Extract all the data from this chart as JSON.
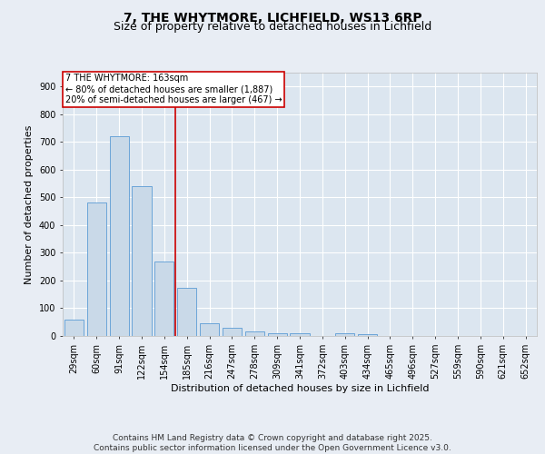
{
  "title": "7, THE WHYTMORE, LICHFIELD, WS13 6RP",
  "subtitle": "Size of property relative to detached houses in Lichfield",
  "xlabel": "Distribution of detached houses by size in Lichfield",
  "ylabel": "Number of detached properties",
  "categories": [
    "29sqm",
    "60sqm",
    "91sqm",
    "122sqm",
    "154sqm",
    "185sqm",
    "216sqm",
    "247sqm",
    "278sqm",
    "309sqm",
    "341sqm",
    "372sqm",
    "403sqm",
    "434sqm",
    "465sqm",
    "496sqm",
    "527sqm",
    "559sqm",
    "590sqm",
    "621sqm",
    "652sqm"
  ],
  "values": [
    60,
    480,
    720,
    540,
    270,
    175,
    45,
    30,
    15,
    10,
    10,
    0,
    10,
    5,
    0,
    0,
    0,
    0,
    0,
    0,
    0
  ],
  "bar_color": "#c9d9e8",
  "bar_edge_color": "#5b9bd5",
  "vline_x": 4.5,
  "vline_color": "#cc0000",
  "annotation_text": "7 THE WHYTMORE: 163sqm\n← 80% of detached houses are smaller (1,887)\n20% of semi-detached houses are larger (467) →",
  "annotation_box_color": "#cc0000",
  "background_color": "#e8edf4",
  "plot_bg_color": "#dce6f0",
  "grid_color": "#ffffff",
  "ylim": [
    0,
    950
  ],
  "yticks": [
    0,
    100,
    200,
    300,
    400,
    500,
    600,
    700,
    800,
    900
  ],
  "footer": "Contains HM Land Registry data © Crown copyright and database right 2025.\nContains public sector information licensed under the Open Government Licence v3.0.",
  "title_fontsize": 10,
  "subtitle_fontsize": 9,
  "label_fontsize": 8,
  "tick_fontsize": 7,
  "footer_fontsize": 6.5,
  "ann_fontsize": 7
}
